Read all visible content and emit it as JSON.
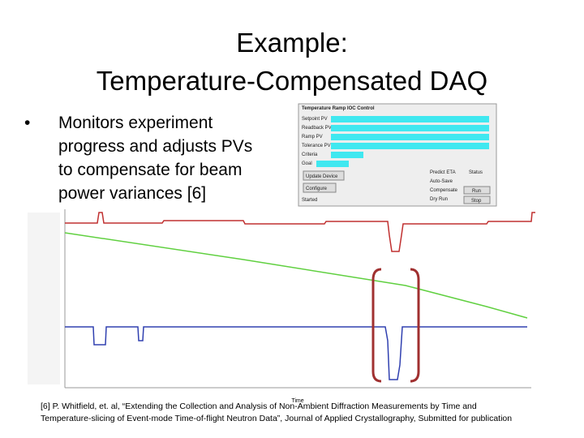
{
  "title": {
    "lines": [
      "Example:",
      "Temperature-Compensated DAQ"
    ]
  },
  "bullet": {
    "lines": [
      "Monitors experiment",
      "progress and adjusts PVs",
      "to compensate for beam",
      "power variances [6]"
    ]
  },
  "panel": {
    "header": "Temperature Ramp IOC Control",
    "fields": [
      "Setpoint PV",
      "Readback PV",
      "Ramp PV",
      "Tolerance PV"
    ],
    "criteria": "Criteria",
    "goal": "Goal",
    "buttons": [
      "Update Device",
      "Configure"
    ],
    "checks": [
      "Predict ETA",
      "Auto-Save",
      "Compensate",
      "Dry Run"
    ],
    "status": "Status",
    "run": "Run",
    "stop": "Stop",
    "started": "Started"
  },
  "chart": {
    "x_label": "Time"
  },
  "citation": {
    "lines": [
      "[6] P. Whitfield, et. al, “Extending the Collection and Analysis of Non-Ambient Diffraction Measurements by Time and",
      "Temperature-slicing of Event-mode Time-of-flight Neutron Data”, Journal of Applied Crystallography, Submitted for publication"
    ]
  }
}
